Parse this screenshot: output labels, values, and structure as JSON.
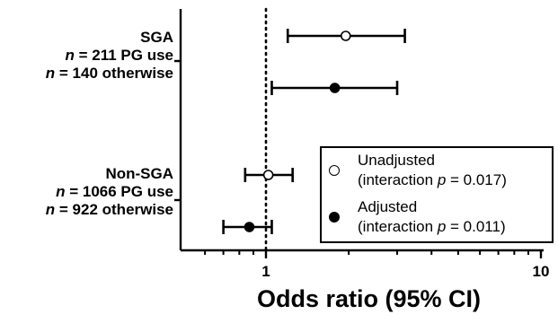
{
  "chart_data": {
    "type": "forest",
    "xlabel": "Odds ratio (95% CI)",
    "xscale": "log",
    "xlim": [
      0.5,
      10
    ],
    "x_ticks": [
      1,
      10
    ],
    "minor_ticks": [
      0.6,
      0.7,
      0.8,
      0.9,
      2,
      3,
      4,
      5,
      6,
      7,
      8,
      9
    ],
    "reference_line": 1,
    "groups": [
      {
        "name": "SGA",
        "n_pg": "n = 211 PG use",
        "n_other": "n = 140 otherwise",
        "n_pg_prefix": "n",
        "n_pg_suffix": " = 211 PG use",
        "n_other_prefix": "n",
        "n_other_suffix": " = 140 otherwise"
      },
      {
        "name": "Non-SGA",
        "n_pg": "n = 1066 PG use",
        "n_other": "n = 922 otherwise",
        "n_pg_prefix": "n",
        "n_pg_suffix": " = 1066 PG use",
        "n_other_prefix": "n",
        "n_other_suffix": " = 922 otherwise"
      }
    ],
    "series": [
      {
        "name": "Unadjusted",
        "interaction": "(interaction p = 0.017)",
        "interaction_pre": "(interaction ",
        "interaction_p": "p",
        "interaction_post": " = 0.017)",
        "marker": "open",
        "points": [
          {
            "group": "SGA",
            "or": 1.95,
            "ci": [
              1.2,
              3.2
            ]
          },
          {
            "group": "Non-SGA",
            "or": 1.02,
            "ci": [
              0.84,
              1.25
            ]
          }
        ]
      },
      {
        "name": "Adjusted",
        "interaction": "(interaction p = 0.011)",
        "interaction_pre": "(interaction ",
        "interaction_p": "p",
        "interaction_post": " = 0.011)",
        "marker": "filled",
        "points": [
          {
            "group": "SGA",
            "or": 1.78,
            "ci": [
              1.05,
              3.0
            ]
          },
          {
            "group": "Non-SGA",
            "or": 0.87,
            "ci": [
              0.7,
              1.05
            ]
          }
        ]
      }
    ],
    "legend": "bottom-right"
  }
}
